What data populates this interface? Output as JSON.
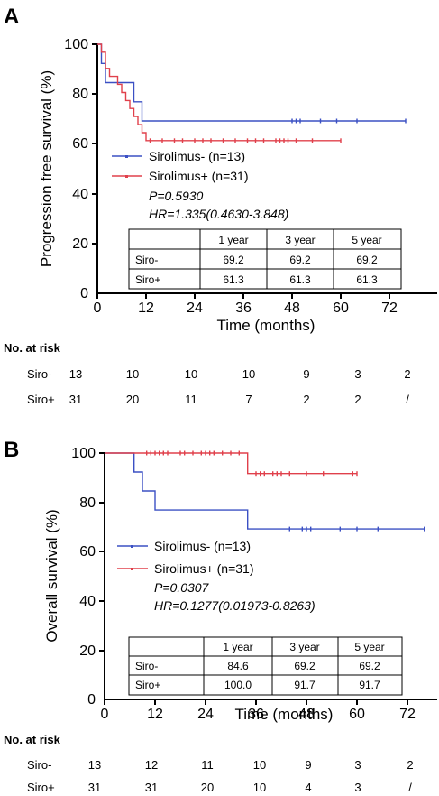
{
  "colors": {
    "siro_minus": "#3b50c4",
    "siro_plus": "#e0404b",
    "axis": "#000000"
  },
  "chart_data": [
    {
      "type": "line",
      "panel": "A",
      "ylabel": "Progression free survival  (%)",
      "xlabel": "Time (months)",
      "xlim": [
        0,
        78
      ],
      "ylim": [
        0,
        100
      ],
      "xticks": [
        "0",
        "12",
        "24",
        "36",
        "48",
        "60",
        "72"
      ],
      "yticks": [
        "0",
        "20",
        "40",
        "60",
        "80",
        "100"
      ],
      "series": [
        {
          "name": "Sirolimus- (n=13)",
          "color": "#3b50c4",
          "steps": [
            [
              0,
              100
            ],
            [
              1,
              92.3
            ],
            [
              2,
              84.6
            ],
            [
              9,
              76.9
            ],
            [
              11,
              69.2
            ],
            [
              76,
              69.2
            ]
          ],
          "censored": [
            48,
            49,
            50,
            55,
            59,
            64,
            76
          ]
        },
        {
          "name": "Sirolimus+ (n=31)",
          "color": "#e0404b",
          "steps": [
            [
              0,
              100
            ],
            [
              1,
              96.8
            ],
            [
              2,
              90.3
            ],
            [
              3,
              87.1
            ],
            [
              5,
              83.9
            ],
            [
              6,
              80.6
            ],
            [
              7,
              77.4
            ],
            [
              8,
              74.2
            ],
            [
              9,
              71.0
            ],
            [
              10,
              67.7
            ],
            [
              11,
              64.5
            ],
            [
              12,
              61.3
            ],
            [
              60,
              61.3
            ]
          ],
          "censored": [
            13,
            16,
            19,
            21,
            24,
            26,
            28,
            31,
            34,
            37,
            39,
            41,
            44,
            45,
            46,
            47,
            49,
            53,
            60
          ]
        }
      ],
      "stats": {
        "p": "P=0.5930",
        "hr": "HR=1.335(0.4630-3.848)"
      },
      "table": {
        "header": [
          "",
          "1 year",
          "3 year",
          "5 year"
        ],
        "rows": [
          [
            "Siro-",
            "69.2",
            "69.2",
            "69.2"
          ],
          [
            "Siro+",
            "61.3",
            "61.3",
            "61.3"
          ]
        ]
      },
      "risk": {
        "title": "No. at risk",
        "rows": [
          {
            "label": "Siro-",
            "values": [
              "13",
              "10",
              "10",
              "10",
              "9",
              "3",
              "2"
            ]
          },
          {
            "label": "Siro+",
            "values": [
              "31",
              "20",
              "11",
              "7",
              "2",
              "2",
              "/"
            ]
          }
        ]
      }
    },
    {
      "type": "line",
      "panel": "B",
      "ylabel": "Overall survival (%)",
      "xlabel": "Time (months)",
      "xlim": [
        0,
        78
      ],
      "ylim": [
        0,
        100
      ],
      "xticks": [
        "0",
        "12",
        "24",
        "36",
        "48",
        "60",
        "72"
      ],
      "yticks": [
        "0",
        "20",
        "40",
        "60",
        "80",
        "100"
      ],
      "series": [
        {
          "name": "Sirolimus- (n=13)",
          "color": "#3b50c4",
          "steps": [
            [
              0,
              100
            ],
            [
              7,
              92.3
            ],
            [
              9,
              84.6
            ],
            [
              12,
              76.9
            ],
            [
              34,
              69.2
            ],
            [
              76,
              69.2
            ]
          ],
          "censored": [
            44,
            47,
            48,
            49,
            56,
            60,
            65,
            76
          ]
        },
        {
          "name": "Sirolimus+ (n=31)",
          "color": "#e0404b",
          "steps": [
            [
              0,
              100
            ],
            [
              34,
              91.7
            ],
            [
              60,
              91.7
            ]
          ],
          "censored": [
            10,
            11,
            12,
            13,
            14,
            15,
            18,
            19,
            21,
            23,
            24,
            25,
            26,
            28,
            30,
            32,
            36,
            37,
            38,
            40,
            41,
            42,
            44,
            48,
            52,
            59,
            60
          ]
        }
      ],
      "stats": {
        "p": "P=0.0307",
        "hr": "HR=0.1277(0.01973-0.8263)"
      },
      "table": {
        "header": [
          "",
          "1 year",
          "3 year",
          "5 year"
        ],
        "rows": [
          [
            "Siro-",
            "84.6",
            "69.2",
            "69.2"
          ],
          [
            "Siro+",
            "100.0",
            "91.7",
            "91.7"
          ]
        ]
      },
      "risk": {
        "title": "No. at risk",
        "rows": [
          {
            "label": "Siro-",
            "values": [
              "13",
              "12",
              "11",
              "10",
              "9",
              "3",
              "2"
            ]
          },
          {
            "label": "Siro+",
            "values": [
              "31",
              "31",
              "20",
              "10",
              "4",
              "3",
              "/"
            ]
          }
        ]
      }
    }
  ]
}
